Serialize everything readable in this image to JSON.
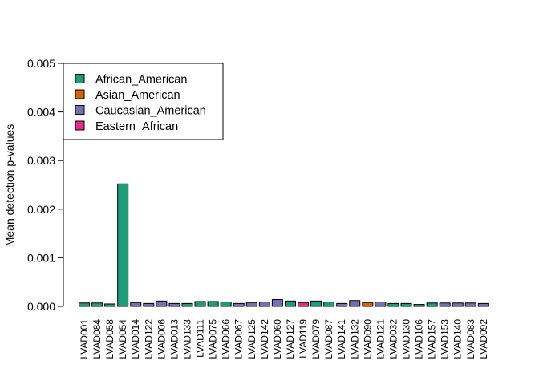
{
  "chart_data": {
    "type": "bar",
    "title": "",
    "xlabel": "",
    "ylabel": "Mean detection p-values",
    "ylim": [
      0,
      0.005
    ],
    "yticks": [
      "0.000",
      "0.001",
      "0.002",
      "0.003",
      "0.004",
      "0.005"
    ],
    "yticks_values": [
      0,
      0.001,
      0.002,
      0.003,
      0.004,
      0.005
    ],
    "legend_position": "top-left",
    "grid": false,
    "groups": [
      {
        "name": "African_American",
        "color": "#1B9E77"
      },
      {
        "name": "Asian_American",
        "color": "#D95F02"
      },
      {
        "name": "Caucasian_American",
        "color": "#7570B3"
      },
      {
        "name": "Eastern_African",
        "color": "#E7298A"
      }
    ],
    "categories": [
      "LVAD001",
      "LVAD084",
      "LVAD058",
      "LVAD054",
      "LVAD014",
      "LVAD122",
      "LVAD006",
      "LVAD013",
      "LVAD133",
      "LVAD111",
      "LVAD075",
      "LVAD066",
      "LVAD067",
      "LVAD125",
      "LVAD142",
      "LVAD060",
      "LVAD127",
      "LVAD119",
      "LVAD079",
      "LVAD087",
      "LVAD141",
      "LVAD132",
      "LVAD090",
      "LVAD121",
      "LVAD032",
      "LVAD130",
      "LVAD106",
      "LVAD157",
      "LVAD153",
      "LVAD140",
      "LVAD083",
      "LVAD092"
    ],
    "values": [
      7e-05,
      7e-05,
      5e-05,
      0.00252,
      8e-05,
      6e-05,
      0.00011,
      6e-05,
      6e-05,
      0.0001,
      0.0001,
      9e-05,
      6e-05,
      8e-05,
      9e-05,
      0.00014,
      0.00011,
      8e-05,
      0.00011,
      9e-05,
      6e-05,
      0.00012,
      8e-05,
      9e-05,
      6e-05,
      6e-05,
      4e-05,
      7e-05,
      7e-05,
      7e-05,
      7e-05,
      6e-05
    ],
    "bar_groups": [
      "African_American",
      "African_American",
      "African_American",
      "African_American",
      "Caucasian_American",
      "Caucasian_American",
      "Caucasian_American",
      "Caucasian_American",
      "African_American",
      "African_American",
      "African_American",
      "African_American",
      "Caucasian_American",
      "Caucasian_American",
      "Caucasian_American",
      "Caucasian_American",
      "African_American",
      "Eastern_African",
      "African_American",
      "African_American",
      "Caucasian_American",
      "Caucasian_American",
      "Asian_American",
      "Caucasian_American",
      "African_American",
      "African_American",
      "African_American",
      "African_American",
      "Caucasian_American",
      "Caucasian_American",
      "Caucasian_American",
      "Caucasian_American"
    ]
  }
}
